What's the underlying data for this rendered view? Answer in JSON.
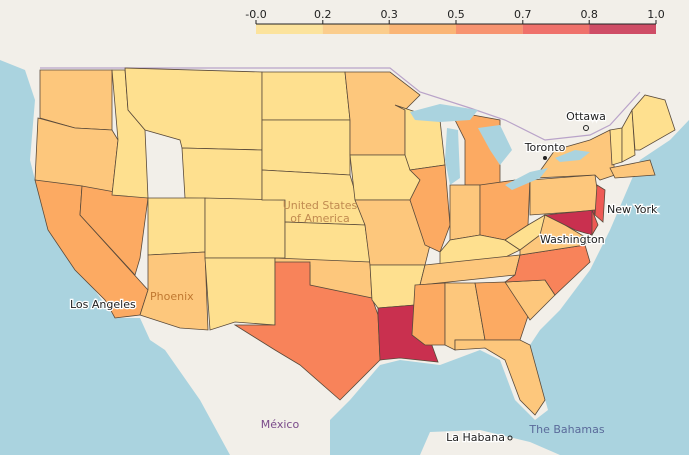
{
  "legend": {
    "ticks": [
      {
        "value": 0,
        "label": "-0.0"
      },
      {
        "value": 0.167,
        "label": "0.2"
      },
      {
        "value": 0.333,
        "label": "0.3"
      },
      {
        "value": 0.5,
        "label": "0.5"
      },
      {
        "value": 0.667,
        "label": "0.7"
      },
      {
        "value": 0.833,
        "label": "0.8"
      },
      {
        "value": 1.0,
        "label": "1.0"
      }
    ],
    "colors": [
      "#fee08f",
      "#fdc77c",
      "#fcaa62",
      "#f8835a",
      "#ee5a55",
      "#c9304f"
    ]
  },
  "state_values": [
    0.25,
    0.25,
    0.4,
    0.4,
    0.1,
    0.1,
    0.1,
    0.1,
    0.25,
    0.1,
    0.1,
    0.1,
    0.1,
    0.1,
    0.1,
    0.25,
    0.6,
    0.25,
    0.1,
    0.25,
    0.1,
    0.9,
    0.1,
    0.4,
    0.4,
    0.25,
    0.4,
    0.1,
    0.25,
    0.4,
    0.3,
    0.4,
    0.25,
    0.25,
    0.6,
    0.25,
    0.1,
    0.25,
    0.25,
    0.9,
    0.75,
    0.75,
    0.3,
    0.1,
    0.1,
    0.1
  ],
  "places": [
    "Ottawa",
    "Toronto",
    "New York",
    "Washington",
    "Los Angeles",
    "Phoenix",
    "United States",
    "of America",
    "México",
    "La Habana",
    "The Bahamas"
  ]
}
